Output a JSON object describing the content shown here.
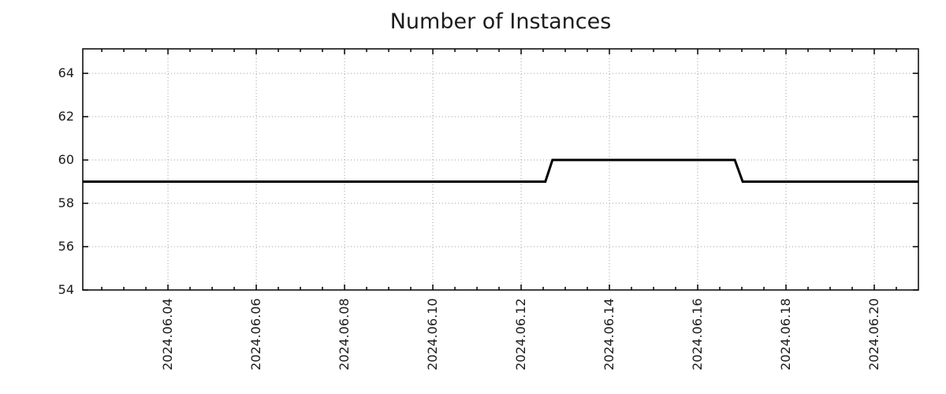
{
  "chart_data": {
    "type": "line",
    "title": "Number of Instances",
    "x_axis": {
      "kind": "date",
      "month_prefix": "2024.06",
      "tick_labels": [
        "2024.06.04",
        "2024.06.06",
        "2024.06.08",
        "2024.06.10",
        "2024.06.12",
        "2024.06.14",
        "2024.06.16",
        "2024.06.18",
        "2024.06.20"
      ],
      "tick_days": [
        4,
        6,
        8,
        10,
        12,
        14,
        16,
        18,
        20
      ],
      "minor_tick_step_days": 0.5,
      "range_days": [
        2.07,
        21.0
      ],
      "grid": true
    },
    "y_axis": {
      "tick_labels": [
        "54",
        "56",
        "58",
        "60",
        "62",
        "64"
      ],
      "ticks": [
        54,
        56,
        58,
        60,
        62,
        64
      ],
      "range": [
        54,
        65.13
      ],
      "grid": true
    },
    "series": [
      {
        "name": "number-of-instances",
        "color": "#000000",
        "line_width": 3,
        "points_day_value": [
          [
            2.07,
            59
          ],
          [
            12.55,
            59
          ],
          [
            12.71,
            60
          ],
          [
            16.84,
            60
          ],
          [
            17.02,
            59
          ],
          [
            21.0,
            59
          ]
        ]
      }
    ],
    "legend": null
  },
  "style": {
    "axis_color": "#000000",
    "grid_color": "#9e9e9e",
    "text_color": "#1c1c1c",
    "background": "#ffffff"
  }
}
